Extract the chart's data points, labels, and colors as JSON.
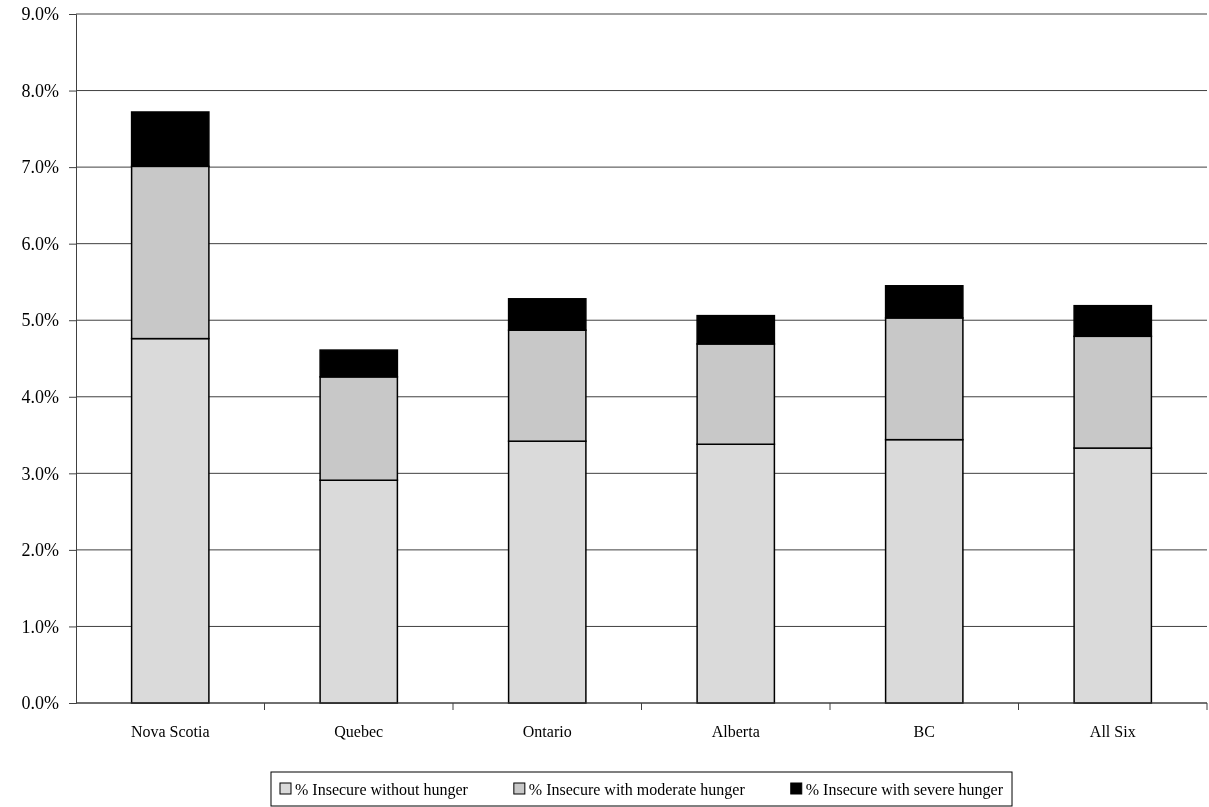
{
  "chart_data": {
    "type": "bar",
    "stacked": true,
    "categories": [
      "Nova Scotia",
      "Quebec",
      "Ontario",
      "Alberta",
      "BC",
      "All Six"
    ],
    "series": [
      {
        "name": "% Insecure without hunger",
        "color": "#dadada",
        "values": [
          4.76,
          2.91,
          3.42,
          3.38,
          3.44,
          3.33
        ]
      },
      {
        "name": "% Insecure with moderate hunger",
        "color": "#c8c8c8",
        "values": [
          2.25,
          1.35,
          1.45,
          1.31,
          1.59,
          1.46
        ]
      },
      {
        "name": "% Insecure with severe hunger",
        "color": "#000000",
        "values": [
          0.71,
          0.35,
          0.41,
          0.37,
          0.42,
          0.4
        ]
      }
    ],
    "ylim": [
      0,
      9
    ],
    "yticks": [
      {
        "value": 0,
        "label": "0.0%"
      },
      {
        "value": 1,
        "label": "1.0%"
      },
      {
        "value": 2,
        "label": "2.0%"
      },
      {
        "value": 3,
        "label": "3.0%"
      },
      {
        "value": 4,
        "label": "4.0%"
      },
      {
        "value": 5,
        "label": "5.0%"
      },
      {
        "value": 6,
        "label": "6.0%"
      },
      {
        "value": 7,
        "label": "7.0%"
      },
      {
        "value": 8,
        "label": "8.0%"
      },
      {
        "value": 9,
        "label": "9.0%"
      }
    ],
    "grid": "y",
    "legend": "bottom"
  }
}
